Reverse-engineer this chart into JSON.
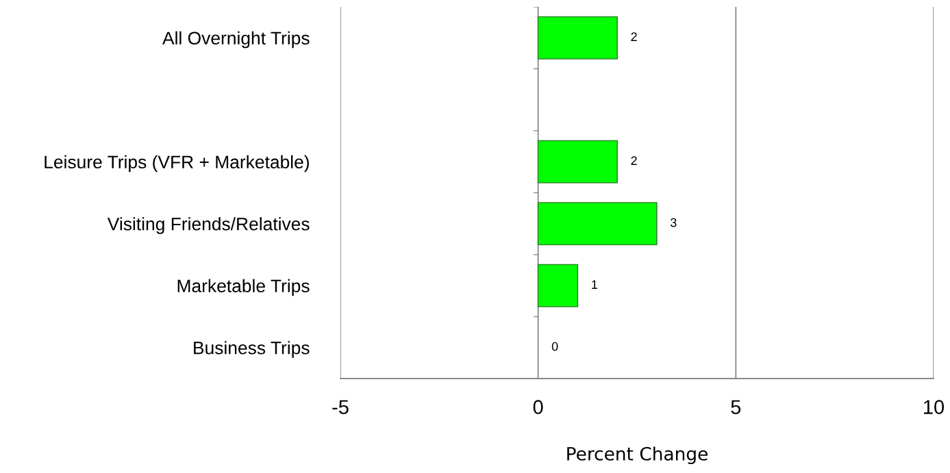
{
  "chart_data": {
    "type": "bar",
    "orientation": "horizontal",
    "xlabel": "Percent Change",
    "categories": [
      "All Overnight Trips",
      null,
      "Leisure Trips (VFR + Marketable)",
      "Visiting Friends/Relatives",
      "Marketable Trips",
      "Business Trips"
    ],
    "values": [
      2,
      null,
      2,
      3,
      1,
      0
    ],
    "color": "#00ff00",
    "data_labels": true,
    "xlim": [
      -5,
      10
    ],
    "xticks": [
      -5,
      0,
      5,
      10
    ],
    "grid": "x",
    "legend": false
  }
}
